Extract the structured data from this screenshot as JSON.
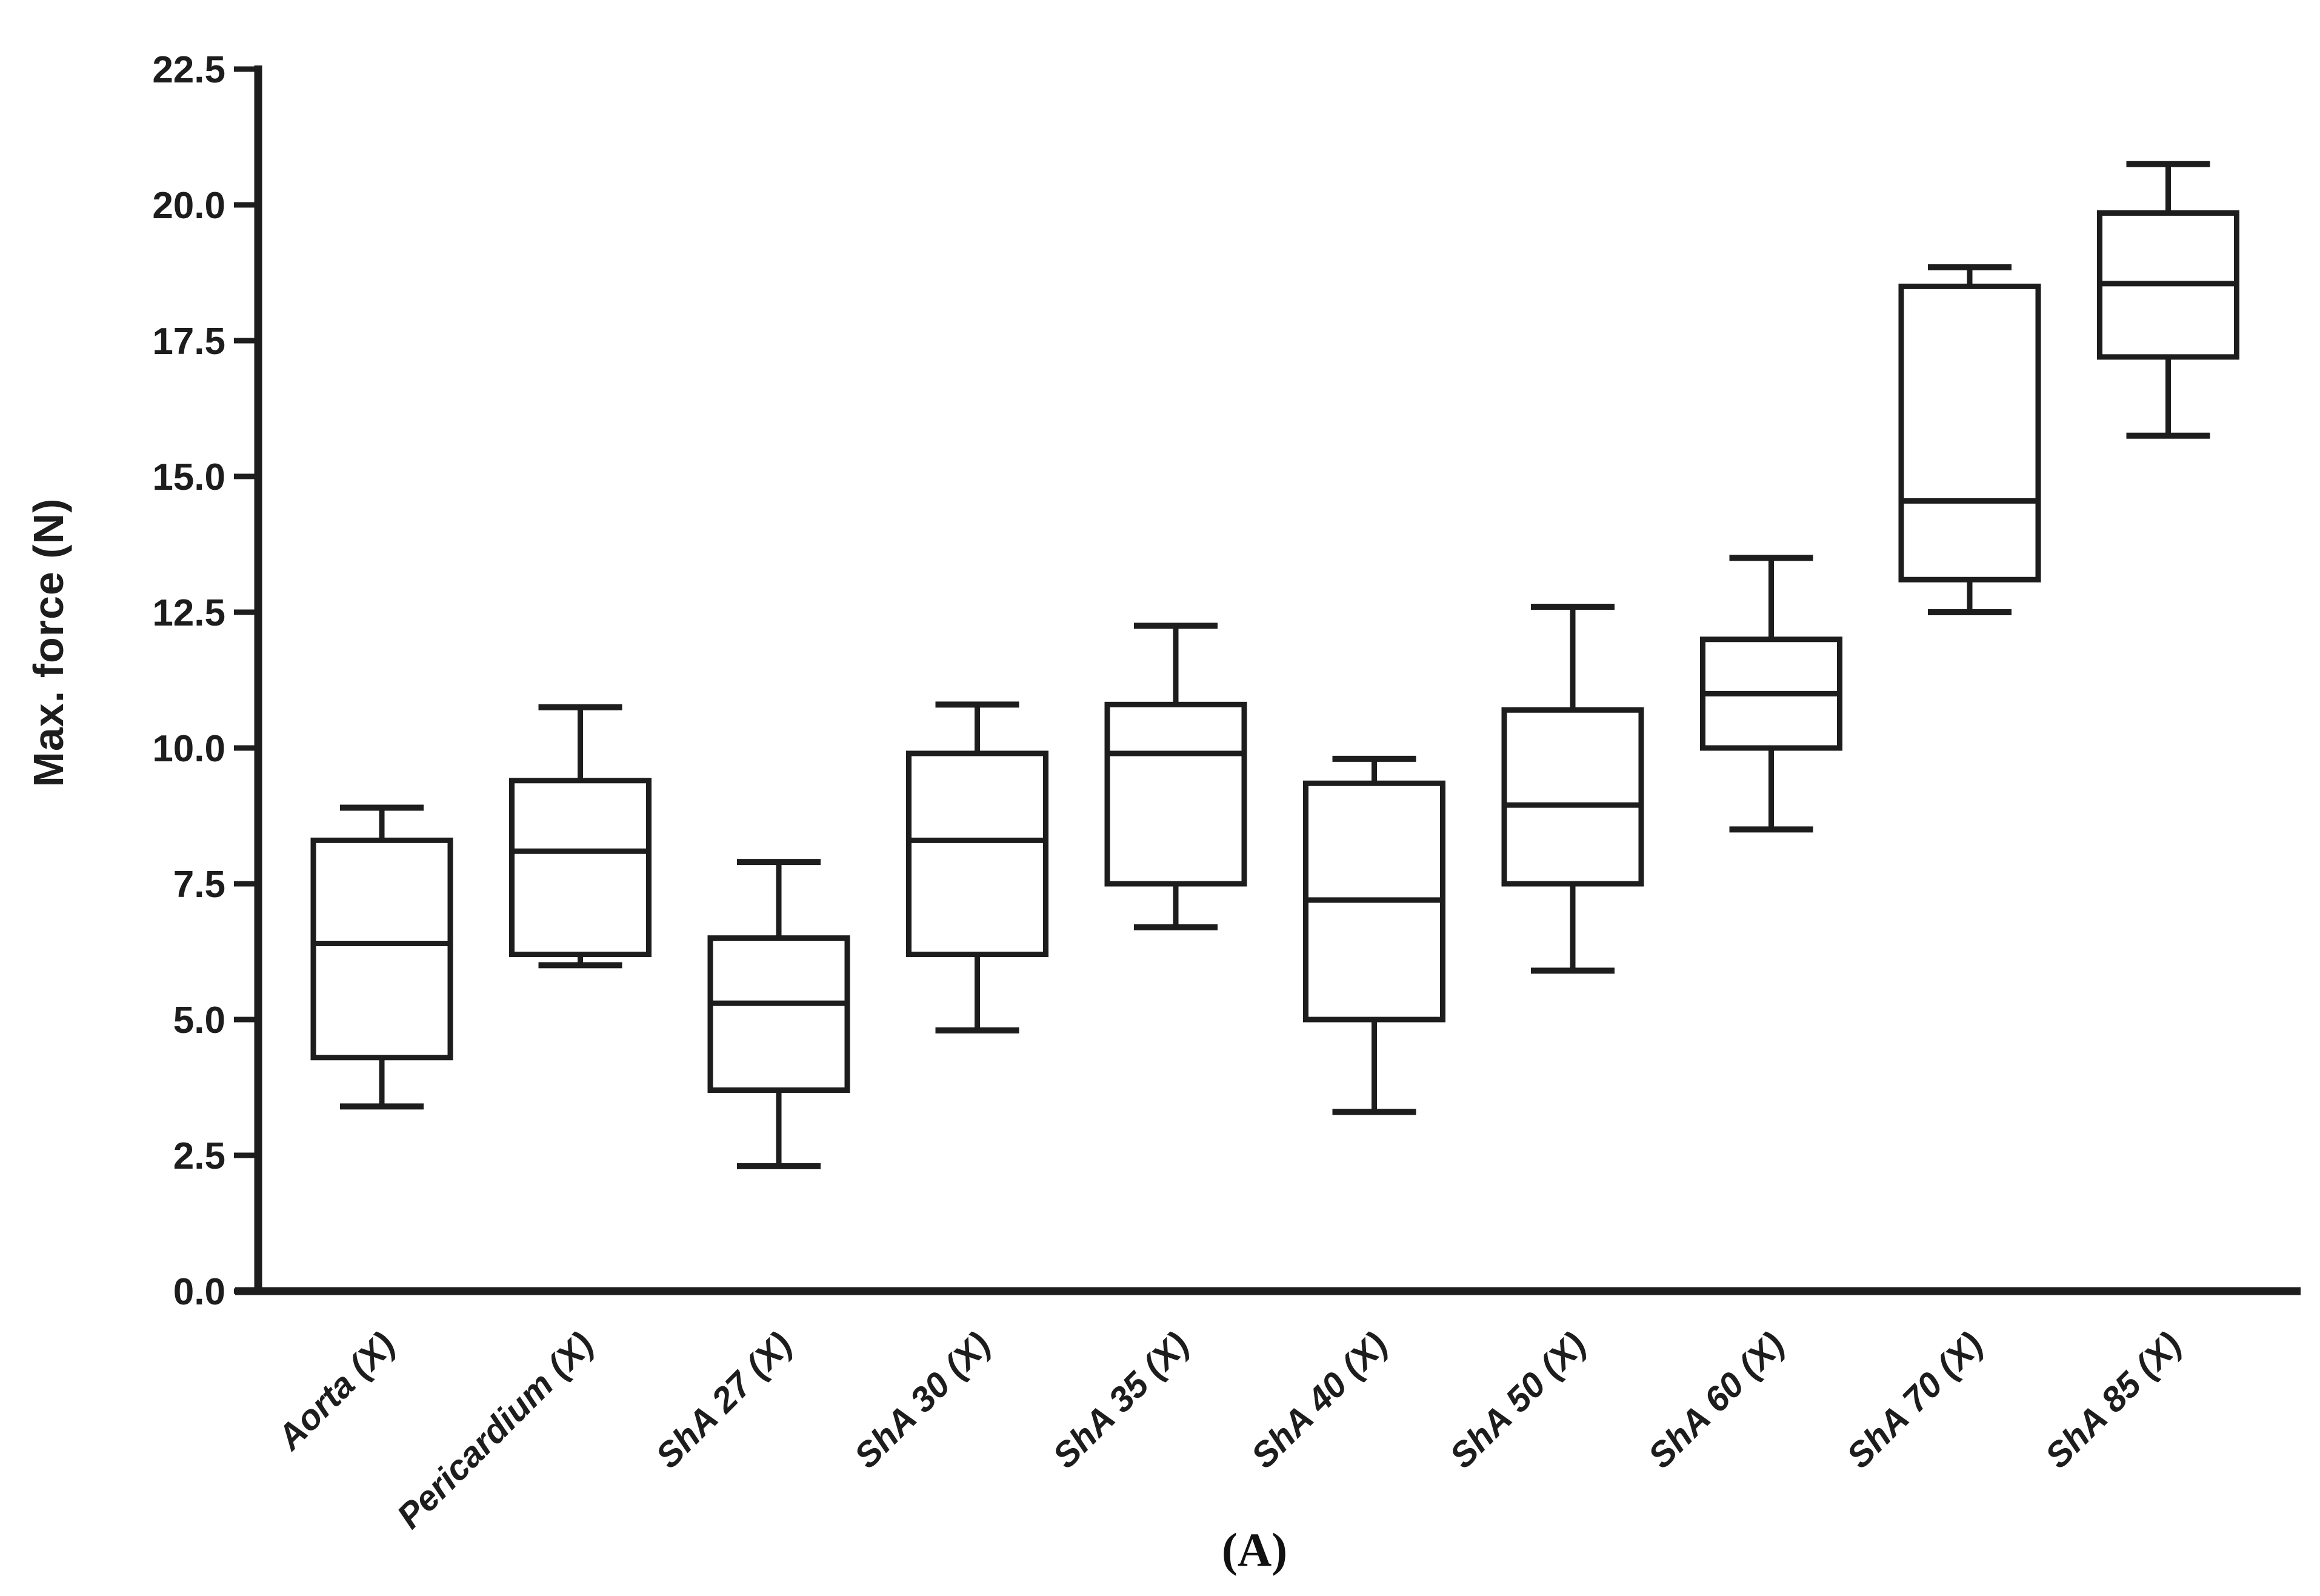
{
  "figure": {
    "caption": "(A)",
    "background_color": "#ffffff",
    "ink_color": "#1d1d1d"
  },
  "chart_data": {
    "type": "box",
    "title": "",
    "xlabel": "",
    "ylabel": "Max. force (N)",
    "ylim": [
      0,
      22.5
    ],
    "yticks": [
      0.0,
      2.5,
      5.0,
      7.5,
      10.0,
      12.5,
      15.0,
      17.5,
      20.0,
      22.5
    ],
    "ytick_format": "one-decimal",
    "grid": false,
    "legend": "none",
    "box_fill": "#ffffff",
    "categories": [
      "Aorta (X)",
      "Pericardium (X)",
      "ShA 27 (X)",
      "ShA 30 (X)",
      "ShA 35 (X)",
      "ShA 40 (X)",
      "ShA 50 (X)",
      "ShA 60 (X)",
      "ShA 70 (X)",
      "ShA 85 (X)"
    ],
    "series": [
      {
        "name": "Aorta (X)",
        "min": 3.4,
        "q1": 4.3,
        "median": 6.4,
        "q3": 8.3,
        "max": 8.9
      },
      {
        "name": "Pericardium (X)",
        "min": 6.0,
        "q1": 6.2,
        "median": 8.1,
        "q3": 9.4,
        "max": 10.75
      },
      {
        "name": "ShA 27 (X)",
        "min": 2.3,
        "q1": 3.7,
        "median": 5.3,
        "q3": 6.5,
        "max": 7.9
      },
      {
        "name": "ShA 30 (X)",
        "min": 4.8,
        "q1": 6.2,
        "median": 8.3,
        "q3": 9.9,
        "max": 10.8
      },
      {
        "name": "ShA 35 (X)",
        "min": 6.7,
        "q1": 7.5,
        "median": 9.9,
        "q3": 10.8,
        "max": 12.25
      },
      {
        "name": "ShA 40 (X)",
        "min": 3.3,
        "q1": 5.0,
        "median": 7.2,
        "q3": 9.35,
        "max": 9.8
      },
      {
        "name": "ShA 50 (X)",
        "min": 5.9,
        "q1": 7.5,
        "median": 8.95,
        "q3": 10.7,
        "max": 12.6
      },
      {
        "name": "ShA 60 (X)",
        "min": 8.5,
        "q1": 10.0,
        "median": 11.0,
        "q3": 12.0,
        "max": 13.5
      },
      {
        "name": "ShA 70 (X)",
        "min": 12.5,
        "q1": 13.1,
        "median": 14.55,
        "q3": 18.5,
        "max": 18.85
      },
      {
        "name": "ShA 85 (X)",
        "min": 15.75,
        "q1": 17.2,
        "median": 18.55,
        "q3": 19.85,
        "max": 20.75
      }
    ]
  }
}
